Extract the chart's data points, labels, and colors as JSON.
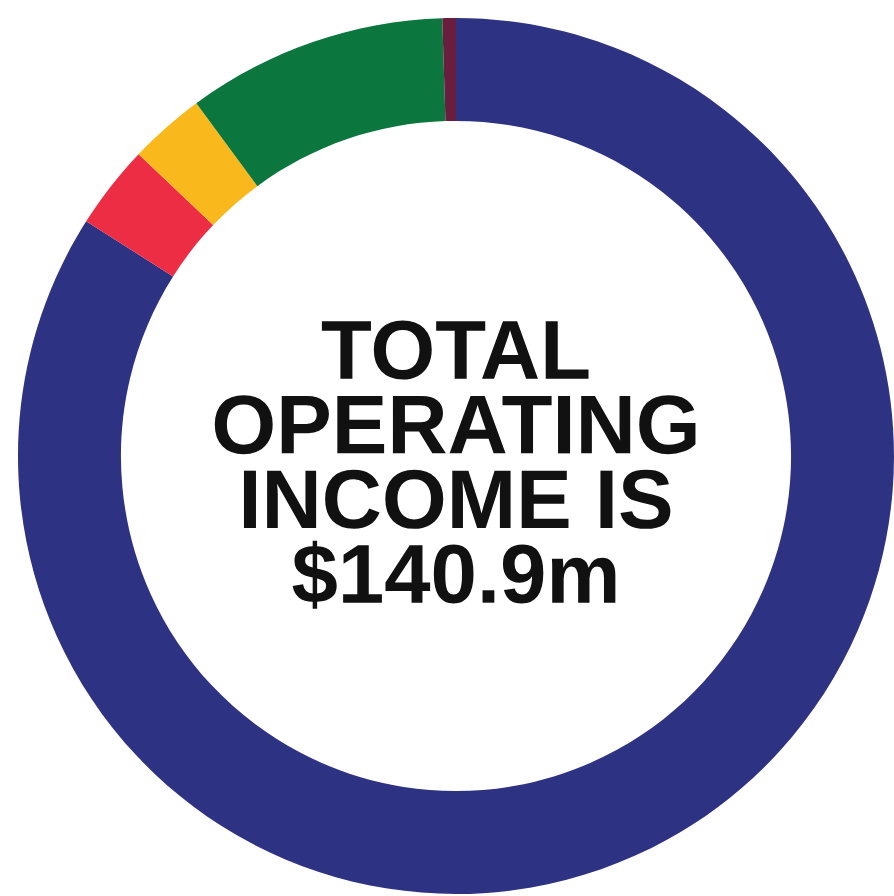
{
  "chart_data": {
    "type": "donut",
    "title": "TOTAL\nOPERATING\nINCOME IS\n$140.9m",
    "categories": [
      null,
      null,
      null,
      null,
      null
    ],
    "values": [
      84.0,
      3.1,
      2.8,
      9.6,
      0.5
    ],
    "colors": [
      "#2e3282",
      "#ed2d43",
      "#f9b91d",
      "#0b763d",
      "#6a1e3e"
    ]
  }
}
